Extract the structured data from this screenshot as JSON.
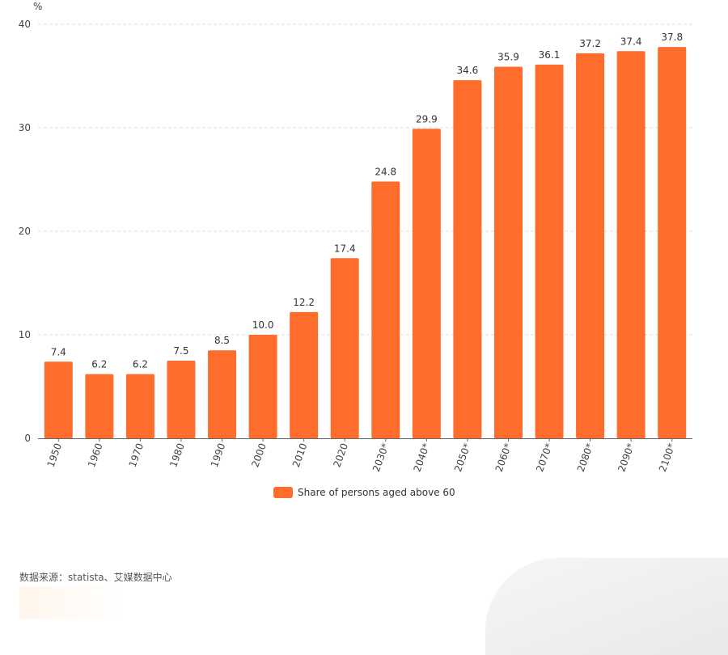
{
  "chart_data": {
    "type": "bar",
    "unit_label": "%",
    "categories": [
      "1950",
      "1960",
      "1970",
      "1980",
      "1990",
      "2000",
      "2010",
      "2020",
      "2030*",
      "2040*",
      "2050*",
      "2060*",
      "2070*",
      "2080*",
      "2090*",
      "2100*"
    ],
    "series": [
      {
        "name": "Share of persons aged above 60",
        "values": [
          7.4,
          6.2,
          6.2,
          7.5,
          8.5,
          10.0,
          12.2,
          17.4,
          24.8,
          29.9,
          34.6,
          35.9,
          36.1,
          37.2,
          37.4,
          37.8
        ],
        "labels": [
          "7.4",
          "6.2",
          "6.2",
          "7.5",
          "8.5",
          "10.0",
          "12.2",
          "17.4",
          "24.8",
          "29.9",
          "34.6",
          "35.9",
          "36.1",
          "37.2",
          "37.4",
          "37.8"
        ]
      }
    ],
    "ylim": [
      0,
      40
    ],
    "yticks": [
      "0",
      "10",
      "20",
      "30",
      "40"
    ],
    "grid": true,
    "legend_position": "bottom-center"
  },
  "colors": {
    "bar": "#ff6d2d",
    "grid": "#dddddd",
    "axis_text": "#444444"
  },
  "legend": {
    "label": "Share of persons aged above 60"
  },
  "source": {
    "text": "数据来源：statista、艾媒数据中心"
  }
}
